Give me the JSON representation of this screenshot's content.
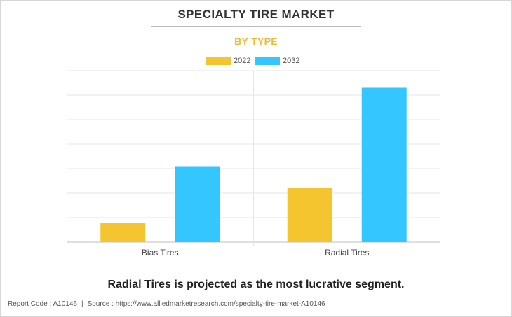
{
  "title": "SPECIALTY TIRE MARKET",
  "subtitle": "BY TYPE",
  "footer_note": "Radial Tires is projected as the most lucrative segment.",
  "report": {
    "code": "Report Code : A10146",
    "separator": "|",
    "source": "Source : https://www.alliedmarketresearch.com/specialty-tire-market-A10146"
  },
  "colors": {
    "subtitle": "#f5b82e",
    "series_2022": "#f4c52f",
    "series_2032": "#33c6ff",
    "grid": "#e6e6e6",
    "axis": "#bfbfbf"
  },
  "chart_data": {
    "type": "bar",
    "title": "SPECIALTY TIRE MARKET",
    "subtitle": "BY TYPE",
    "categories": [
      "Bias Tires",
      "Radial Tires"
    ],
    "series": [
      {
        "name": "2022",
        "values": [
          0.8,
          2.2
        ]
      },
      {
        "name": "2032",
        "values": [
          3.1,
          6.3
        ]
      }
    ],
    "xlabel": "",
    "ylabel": "",
    "ylim": [
      0,
      7
    ],
    "y_ticks_shown": false,
    "grid": true,
    "legend_position": "top-center"
  }
}
